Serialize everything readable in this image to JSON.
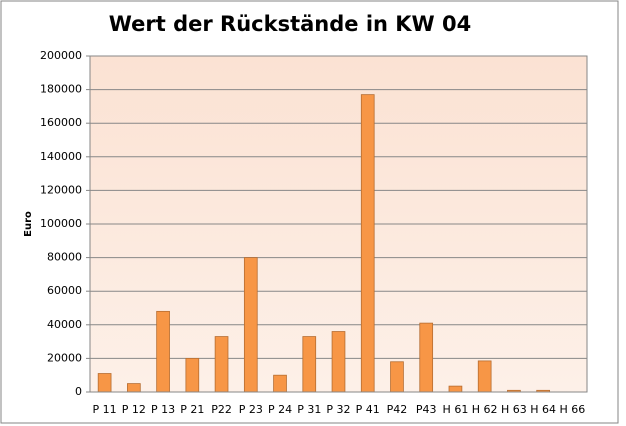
{
  "chart_data": {
    "type": "bar",
    "title": "Wert der Rückstände in KW 04",
    "y_label": "Euro",
    "categories": [
      "P 11",
      "P 12",
      "P 13",
      "P 21",
      "P22",
      "P 23",
      "P 24",
      "P 31",
      "P 32",
      "P 41",
      "P42",
      "P43",
      "H 61",
      "H 62",
      "H 63",
      "H 64",
      "H 66"
    ],
    "values": [
      11000,
      5000,
      48000,
      20000,
      33000,
      80000,
      10000,
      33000,
      36000,
      177000,
      18000,
      41000,
      3500,
      18500,
      1000,
      1000,
      0
    ],
    "color": "#f79646",
    "ylim": [
      0,
      200000
    ],
    "yticks": [
      0,
      20000,
      40000,
      60000,
      80000,
      100000,
      120000,
      140000,
      160000,
      180000,
      200000
    ],
    "grid": true
  }
}
